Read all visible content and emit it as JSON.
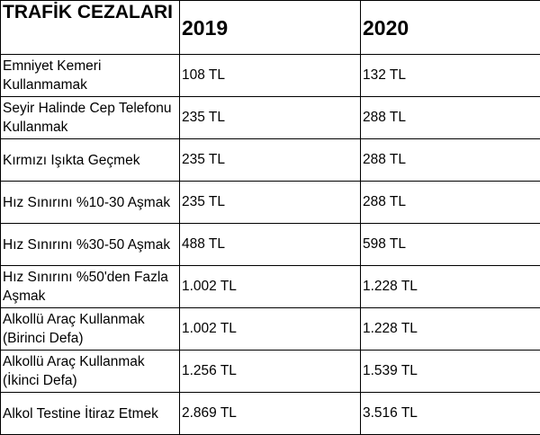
{
  "table": {
    "header": {
      "label": "TRAFİK CEZALARI",
      "year1": "2019",
      "year2": "2020"
    },
    "rows": [
      {
        "label": "Emniyet Kemeri Kullanmamak",
        "v2019": "108 TL",
        "v2020": "132 TL"
      },
      {
        "label": "Seyir Halinde Cep Telefonu Kullanmak",
        "v2019": "235 TL",
        "v2020": "288 TL"
      },
      {
        "label": "Kırmızı Işıkta Geçmek",
        "v2019": "235 TL",
        "v2020": "288 TL"
      },
      {
        "label": "Hız Sınırını %10-30 Aşmak",
        "v2019": "235 TL",
        "v2020": "288 TL"
      },
      {
        "label": "Hız Sınırını %30-50 Aşmak",
        "v2019": "488 TL",
        "v2020": "598 TL"
      },
      {
        "label": "Hız Sınırını %50'den Fazla Aşmak",
        "v2019": "1.002 TL",
        "v2020": "1.228 TL"
      },
      {
        "label": "Alkollü Araç Kullanmak (Birinci Defa)",
        "v2019": "1.002 TL",
        "v2020": "1.228 TL"
      },
      {
        "label": "Alkollü Araç Kullanmak (İkinci Defa)",
        "v2019": "1.256 TL",
        "v2020": "1.539 TL"
      },
      {
        "label": "Alkol Testine İtiraz Etmek",
        "v2019": "2.869 TL",
        "v2020": "3.516 TL"
      }
    ]
  }
}
